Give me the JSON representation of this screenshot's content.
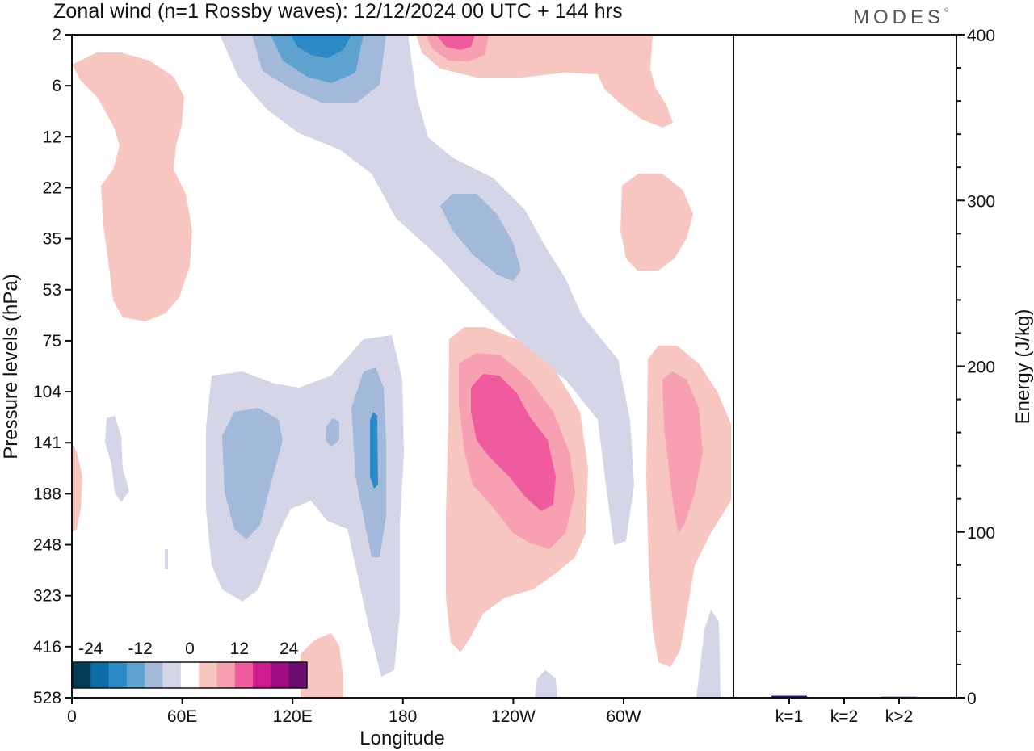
{
  "title": "Zonal wind (n=1 Rossby waves):  12/12/2024  00 UTC  + 144 hrs",
  "logo": "MODES",
  "logo_mark": "©",
  "colors": {
    "neg": [
      "#053d58",
      "#0b6ca6",
      "#2c8bc6",
      "#5ea2cf",
      "#a3b9da",
      "#d4d5e7"
    ],
    "zero": "#ffffff",
    "pos": [
      "#f8c6c0",
      "#f7a0b2",
      "#ef5b9c",
      "#cc1c8d",
      "#9c0b80",
      "#6a0b6e"
    ],
    "bar": "#1a1a6e"
  },
  "chart_data": [
    {
      "type": "heatmap",
      "title": "Zonal wind (n=1 Rossby waves):  12/12/2024  00 UTC  + 144 hrs",
      "xlabel": "Longitude",
      "ylabel": "Pressure levels (hPa)",
      "x_ticks": [
        "0",
        "60E",
        "120E",
        "180",
        "120W",
        "60W"
      ],
      "y_ticks": [
        "2",
        "6",
        "12",
        "22",
        "35",
        "53",
        "75",
        "104",
        "141",
        "188",
        "248",
        "323",
        "416",
        "528"
      ],
      "colorbar": {
        "levels": [
          -24,
          -12,
          0,
          12,
          24
        ],
        "labels": [
          "-24",
          "-12",
          "0",
          "12",
          "24"
        ]
      },
      "regions": [
        {
          "sign": "pos",
          "level": 1,
          "lon": [
            0,
            34
          ],
          "plev": [
            3,
            60
          ]
        },
        {
          "sign": "neg",
          "level": 1,
          "lon": [
            40,
            95
          ],
          "plev": [
            2,
            12
          ]
        },
        {
          "sign": "neg",
          "level": 2,
          "lon": [
            55,
            85
          ],
          "plev": [
            2,
            6
          ]
        },
        {
          "sign": "neg",
          "level": 3,
          "lon": [
            62,
            80
          ],
          "plev": [
            2,
            4
          ]
        },
        {
          "sign": "neg",
          "level": 4,
          "lon": [
            65,
            75
          ],
          "plev": [
            2,
            3
          ]
        },
        {
          "sign": "pos",
          "level": 1,
          "lon": [
            95,
            165
          ],
          "plev": [
            2,
            10
          ]
        },
        {
          "sign": "pos",
          "level": 2,
          "lon": [
            100,
            115
          ],
          "plev": [
            2,
            3
          ]
        },
        {
          "sign": "pos",
          "level": 1,
          "lon": [
            150,
            170
          ],
          "plev": [
            20,
            45
          ]
        },
        {
          "sign": "neg",
          "level": 2,
          "lon": [
            100,
            122
          ],
          "plev": [
            26,
            50
          ]
        },
        {
          "sign": "neg",
          "level": 1,
          "lon": [
            37,
            110
          ],
          "plev": [
            95,
            340
          ]
        },
        {
          "sign": "neg",
          "level": 2,
          "lon": [
            42,
            58
          ],
          "plev": [
            120,
            240
          ]
        },
        {
          "sign": "neg",
          "level": 2,
          "lon": [
            76,
            88
          ],
          "plev": [
            100,
            260
          ]
        },
        {
          "sign": "neg",
          "level": 1,
          "lon": [
            140,
            152
          ],
          "plev": [
            90,
            240
          ]
        },
        {
          "sign": "pos",
          "level": 1,
          "lon": [
            104,
            142
          ],
          "plev": [
            75,
            420
          ]
        },
        {
          "sign": "pos",
          "level": 2,
          "lon": [
            108,
            136
          ],
          "plev": [
            95,
            250
          ]
        },
        {
          "sign": "pos",
          "level": 3,
          "lon": [
            112,
            132
          ],
          "plev": [
            106,
            210
          ]
        },
        {
          "sign": "pos",
          "level": 1,
          "lon": [
            157,
            180
          ],
          "plev": [
            80,
            400
          ]
        },
        {
          "sign": "pos",
          "level": 2,
          "lon": [
            161,
            175
          ],
          "plev": [
            100,
            240
          ]
        },
        {
          "sign": "pos",
          "level": 1,
          "lon": [
            64,
            74
          ],
          "plev": [
            410,
            528
          ]
        },
        {
          "sign": "pos",
          "level": 1,
          "lon": [
            0,
            3
          ],
          "plev": [
            150,
            245
          ]
        }
      ]
    },
    {
      "type": "bar",
      "categories": [
        "k=1",
        "k=2",
        "k>2"
      ],
      "values": [
        1.2,
        0.3,
        0.6
      ],
      "ylabel": "Energy (J/kg)",
      "ylim": [
        0,
        400
      ],
      "y_ticks": [
        "0",
        "100",
        "200",
        "300",
        "400"
      ]
    }
  ]
}
